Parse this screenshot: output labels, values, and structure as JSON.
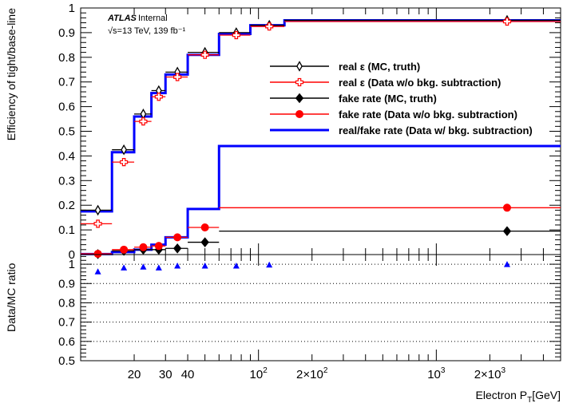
{
  "chart_data": [
    {
      "type": "line",
      "panel": "main",
      "ylabel": "Efficiency of tight/base-line",
      "xscale": "log",
      "xlim": [
        10,
        5000
      ],
      "ylim": [
        0,
        1
      ],
      "yticks": [
        {
          "v": 0,
          "label": "0"
        },
        {
          "v": 0.1,
          "label": "0.1"
        },
        {
          "v": 0.2,
          "label": "0.2"
        },
        {
          "v": 0.3,
          "label": "0.3"
        },
        {
          "v": 0.4,
          "label": "0.4"
        },
        {
          "v": 0.5,
          "label": "0.5"
        },
        {
          "v": 0.6,
          "label": "0.6"
        },
        {
          "v": 0.7,
          "label": "0.7"
        },
        {
          "v": 0.8,
          "label": "0.8"
        },
        {
          "v": 0.9,
          "label": "0.9"
        },
        {
          "v": 1,
          "label": "1"
        }
      ],
      "atlas": {
        "label": "ATLAS",
        "sub": "Internal",
        "energy": "√s=13 TeV, 139 fb⁻¹"
      },
      "legend_position": "center-right",
      "legend": [
        {
          "label": "real  ε (MC, truth)",
          "color": "#000000",
          "marker": "open-diamond"
        },
        {
          "label": "real  ε (Data w/o bkg. subtraction)",
          "color": "#ff0000",
          "marker": "open-cross"
        },
        {
          "label": "fake rate (MC, truth)",
          "color": "#000000",
          "marker": "filled-diamond"
        },
        {
          "label": "fake rate (Data w/o bkg. subtraction)",
          "color": "#ff0000",
          "marker": "filled-circle"
        },
        {
          "label": "real/fake rate (Data w/ bkg. subtraction)",
          "color": "#0000ff",
          "marker": "line"
        }
      ],
      "series": [
        {
          "name": "real  ε (MC, truth)",
          "color": "#000000",
          "marker": "open-diamond",
          "points": [
            {
              "x": 12.5,
              "x0": 10,
              "x1": 15,
              "y": 0.18
            },
            {
              "x": 17.5,
              "x0": 15,
              "x1": 20,
              "y": 0.425
            },
            {
              "x": 22.5,
              "x0": 20,
              "x1": 25,
              "y": 0.57
            },
            {
              "x": 27.5,
              "x0": 25,
              "x1": 30,
              "y": 0.665
            },
            {
              "x": 35,
              "x0": 30,
              "x1": 40,
              "y": 0.74
            },
            {
              "x": 50,
              "x0": 40,
              "x1": 60,
              "y": 0.82
            },
            {
              "x": 75,
              "x0": 60,
              "x1": 90,
              "y": 0.9
            },
            {
              "x": 115,
              "x0": 90,
              "x1": 140,
              "y": 0.93
            },
            {
              "x": 2500,
              "x0": 140,
              "x1": 5000,
              "y": 0.95
            }
          ]
        },
        {
          "name": "real  ε (Data w/o bkg. subtraction)",
          "color": "#ff0000",
          "marker": "open-cross",
          "points": [
            {
              "x": 12.5,
              "x0": 10,
              "x1": 15,
              "y": 0.125
            },
            {
              "x": 17.5,
              "x0": 15,
              "x1": 20,
              "y": 0.375
            },
            {
              "x": 22.5,
              "x0": 20,
              "x1": 25,
              "y": 0.54
            },
            {
              "x": 27.5,
              "x0": 25,
              "x1": 30,
              "y": 0.64
            },
            {
              "x": 35,
              "x0": 30,
              "x1": 40,
              "y": 0.72
            },
            {
              "x": 50,
              "x0": 40,
              "x1": 60,
              "y": 0.81
            },
            {
              "x": 75,
              "x0": 60,
              "x1": 90,
              "y": 0.89
            },
            {
              "x": 115,
              "x0": 90,
              "x1": 140,
              "y": 0.925
            },
            {
              "x": 2500,
              "x0": 140,
              "x1": 5000,
              "y": 0.945
            }
          ]
        },
        {
          "name": "fake rate (MC, truth)",
          "color": "#000000",
          "marker": "filled-diamond",
          "points": [
            {
              "x": 12.5,
              "x0": 10,
              "x1": 15,
              "y": 0.002
            },
            {
              "x": 17.5,
              "x0": 15,
              "x1": 20,
              "y": 0.015
            },
            {
              "x": 22.5,
              "x0": 20,
              "x1": 25,
              "y": 0.02
            },
            {
              "x": 27.5,
              "x0": 25,
              "x1": 30,
              "y": 0.02
            },
            {
              "x": 35,
              "x0": 30,
              "x1": 40,
              "y": 0.025
            },
            {
              "x": 50,
              "x0": 40,
              "x1": 60,
              "y": 0.05
            },
            {
              "x": 2500,
              "x0": 60,
              "x1": 5000,
              "y": 0.095
            }
          ]
        },
        {
          "name": "fake rate (Data w/o bkg. subtraction)",
          "color": "#ff0000",
          "marker": "filled-circle",
          "points": [
            {
              "x": 12.5,
              "x0": 10,
              "x1": 15,
              "y": 0.003
            },
            {
              "x": 17.5,
              "x0": 15,
              "x1": 20,
              "y": 0.02
            },
            {
              "x": 22.5,
              "x0": 20,
              "x1": 25,
              "y": 0.03
            },
            {
              "x": 27.5,
              "x0": 25,
              "x1": 30,
              "y": 0.035
            },
            {
              "x": 35,
              "x0": 30,
              "x1": 40,
              "y": 0.07
            },
            {
              "x": 50,
              "x0": 40,
              "x1": 60,
              "y": 0.11
            },
            {
              "x": 2500,
              "x0": 60,
              "x1": 5000,
              "y": 0.19
            }
          ]
        },
        {
          "name": "real/fake rate (Data w/ bkg. subtraction)",
          "color": "#0000ff",
          "marker": "line",
          "steps": [
            [
              {
                "x0": 10,
                "x1": 15,
                "y": 0.175
              },
              {
                "x0": 15,
                "x1": 20,
                "y": 0.415
              },
              {
                "x0": 20,
                "x1": 25,
                "y": 0.56
              },
              {
                "x0": 25,
                "x1": 30,
                "y": 0.655
              },
              {
                "x0": 30,
                "x1": 40,
                "y": 0.73
              },
              {
                "x0": 40,
                "x1": 60,
                "y": 0.81
              },
              {
                "x0": 60,
                "x1": 90,
                "y": 0.895
              },
              {
                "x0": 90,
                "x1": 140,
                "y": 0.93
              },
              {
                "x0": 140,
                "x1": 5000,
                "y": 0.95
              }
            ],
            [
              {
                "x0": 10,
                "x1": 15,
                "y": 0.002
              },
              {
                "x0": 15,
                "x1": 20,
                "y": 0.01
              },
              {
                "x0": 20,
                "x1": 25,
                "y": 0.02
              },
              {
                "x0": 25,
                "x1": 30,
                "y": 0.04
              },
              {
                "x0": 30,
                "x1": 40,
                "y": 0.07
              },
              {
                "x0": 40,
                "x1": 60,
                "y": 0.185
              },
              {
                "x0": 60,
                "x1": 5000,
                "y": 0.44
              }
            ]
          ]
        }
      ]
    },
    {
      "type": "scatter",
      "panel": "ratio",
      "ylabel": "Data/MC ratio",
      "xlabel": "Electron P_T[GeV]",
      "xscale": "log",
      "xlim": [
        10,
        5000
      ],
      "ylim": [
        0.5,
        1.05
      ],
      "yticks": [
        {
          "v": 0.5,
          "label": "0.5"
        },
        {
          "v": 0.6,
          "label": "0.6"
        },
        {
          "v": 0.7,
          "label": "0.7"
        },
        {
          "v": 0.8,
          "label": "0.8"
        },
        {
          "v": 0.9,
          "label": "0.9"
        },
        {
          "v": 1,
          "label": "1"
        }
      ],
      "gridlines_y": [
        0.6,
        0.7,
        0.8,
        0.9,
        1.0
      ],
      "xtick_labels": [
        {
          "v": 20,
          "label": "20"
        },
        {
          "v": 30,
          "label": "30"
        },
        {
          "v": 40,
          "label": "40"
        },
        {
          "v": 100,
          "label": "10",
          "exp": "2"
        },
        {
          "v": 200,
          "label": "2×10",
          "exp": "2"
        },
        {
          "v": 1000,
          "label": "10",
          "exp": "3"
        },
        {
          "v": 2000,
          "label": "2×10",
          "exp": "3"
        }
      ],
      "series": [
        {
          "color": "#0000ff",
          "marker": "filled-triangle",
          "points": [
            {
              "x": 12.5,
              "y": 0.96
            },
            {
              "x": 17.5,
              "y": 0.98
            },
            {
              "x": 22.5,
              "y": 0.985
            },
            {
              "x": 27.5,
              "y": 0.98
            },
            {
              "x": 35,
              "y": 0.99
            },
            {
              "x": 50,
              "y": 0.99
            },
            {
              "x": 75,
              "y": 0.99
            },
            {
              "x": 115,
              "y": 0.995
            },
            {
              "x": 2500,
              "y": 0.998
            }
          ]
        }
      ]
    }
  ]
}
